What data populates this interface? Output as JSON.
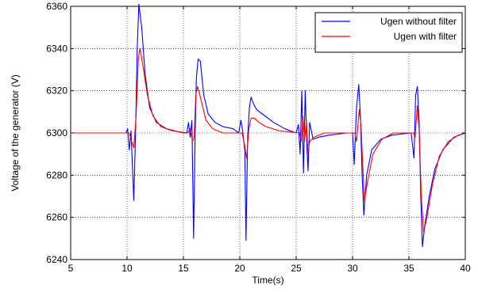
{
  "chart_data": {
    "type": "line",
    "title": "",
    "xlabel": "Time(s)",
    "ylabel": "Voltage of the generator (V)",
    "xlim": [
      5,
      40
    ],
    "ylim": [
      6240,
      6360
    ],
    "x_ticks": [
      5,
      10,
      15,
      20,
      25,
      30,
      35,
      40
    ],
    "y_ticks": [
      6240,
      6260,
      6280,
      6300,
      6320,
      6340,
      6360
    ],
    "grid": true,
    "legend_position": "top-right",
    "series": [
      {
        "name": "Ugen without filter",
        "color": "#0000ff",
        "points": [
          [
            5,
            6300
          ],
          [
            9.9,
            6300
          ],
          [
            10.05,
            6302
          ],
          [
            10.2,
            6292
          ],
          [
            10.35,
            6301
          ],
          [
            10.6,
            6268
          ],
          [
            10.75,
            6300
          ],
          [
            10.9,
            6340
          ],
          [
            11.05,
            6361
          ],
          [
            11.3,
            6350
          ],
          [
            11.6,
            6328
          ],
          [
            12,
            6312
          ],
          [
            12.6,
            6305
          ],
          [
            13.5,
            6302
          ],
          [
            15,
            6300
          ],
          [
            15.3,
            6300
          ],
          [
            15.45,
            6305
          ],
          [
            15.6,
            6298
          ],
          [
            15.75,
            6306
          ],
          [
            15.9,
            6250
          ],
          [
            16.05,
            6302
          ],
          [
            16.15,
            6326
          ],
          [
            16.3,
            6335
          ],
          [
            16.5,
            6334
          ],
          [
            16.8,
            6318
          ],
          [
            17.2,
            6309
          ],
          [
            17.8,
            6305
          ],
          [
            18.5,
            6303
          ],
          [
            19.4,
            6302
          ],
          [
            19.9,
            6300
          ],
          [
            20.1,
            6306
          ],
          [
            20.25,
            6301
          ],
          [
            20.45,
            6291
          ],
          [
            20.55,
            6249
          ],
          [
            20.7,
            6298
          ],
          [
            20.85,
            6312
          ],
          [
            21.0,
            6317
          ],
          [
            21.2,
            6314
          ],
          [
            21.5,
            6311
          ],
          [
            22,
            6309
          ],
          [
            23,
            6305
          ],
          [
            24,
            6302
          ],
          [
            25,
            6300
          ],
          [
            25.2,
            6304
          ],
          [
            25.35,
            6290
          ],
          [
            25.5,
            6320
          ],
          [
            25.65,
            6281
          ],
          [
            25.8,
            6320
          ],
          [
            25.95,
            6294
          ],
          [
            26.05,
            6282
          ],
          [
            26.2,
            6305
          ],
          [
            26.5,
            6297
          ],
          [
            27,
            6298
          ],
          [
            28,
            6299
          ],
          [
            29.5,
            6300
          ],
          [
            30,
            6300
          ],
          [
            30.15,
            6285
          ],
          [
            30.35,
            6312
          ],
          [
            30.55,
            6323
          ],
          [
            30.7,
            6308
          ],
          [
            30.85,
            6280
          ],
          [
            31.0,
            6261
          ],
          [
            31.25,
            6280
          ],
          [
            31.7,
            6292
          ],
          [
            32.5,
            6297
          ],
          [
            33.5,
            6299
          ],
          [
            35.2,
            6300
          ],
          [
            35.45,
            6288
          ],
          [
            35.6,
            6318
          ],
          [
            35.75,
            6322
          ],
          [
            35.9,
            6306
          ],
          [
            36.05,
            6270
          ],
          [
            36.2,
            6246
          ],
          [
            36.4,
            6256
          ],
          [
            36.8,
            6270
          ],
          [
            37.3,
            6283
          ],
          [
            38,
            6292
          ],
          [
            39,
            6298
          ],
          [
            40,
            6300
          ]
        ]
      },
      {
        "name": "Ugen with filter",
        "color": "#ff0000",
        "points": [
          [
            5,
            6300
          ],
          [
            10.2,
            6300
          ],
          [
            10.4,
            6296
          ],
          [
            10.6,
            6293
          ],
          [
            10.8,
            6308
          ],
          [
            11.0,
            6335
          ],
          [
            11.15,
            6340
          ],
          [
            11.4,
            6332
          ],
          [
            11.8,
            6318
          ],
          [
            12.3,
            6308
          ],
          [
            13,
            6303
          ],
          [
            14,
            6301
          ],
          [
            15.4,
            6300
          ],
          [
            15.6,
            6302
          ],
          [
            15.8,
            6296
          ],
          [
            15.95,
            6298
          ],
          [
            16.1,
            6318
          ],
          [
            16.25,
            6322
          ],
          [
            16.5,
            6317
          ],
          [
            17,
            6306
          ],
          [
            17.6,
            6302
          ],
          [
            18.5,
            6300
          ],
          [
            20.2,
            6300
          ],
          [
            20.4,
            6295
          ],
          [
            20.6,
            6288
          ],
          [
            20.8,
            6302
          ],
          [
            21.0,
            6307
          ],
          [
            21.3,
            6307
          ],
          [
            21.7,
            6305
          ],
          [
            22.3,
            6303
          ],
          [
            23.5,
            6301
          ],
          [
            25.3,
            6300
          ],
          [
            25.45,
            6296
          ],
          [
            25.6,
            6308
          ],
          [
            25.75,
            6296
          ],
          [
            25.9,
            6306
          ],
          [
            26.05,
            6290
          ],
          [
            26.2,
            6296
          ],
          [
            26.6,
            6298
          ],
          [
            27.5,
            6300
          ],
          [
            30.2,
            6300
          ],
          [
            30.35,
            6296
          ],
          [
            30.6,
            6311
          ],
          [
            30.75,
            6303
          ],
          [
            30.9,
            6285
          ],
          [
            31.05,
            6268
          ],
          [
            31.3,
            6276
          ],
          [
            31.8,
            6290
          ],
          [
            32.6,
            6297
          ],
          [
            33.6,
            6300
          ],
          [
            35.4,
            6300
          ],
          [
            35.55,
            6298
          ],
          [
            35.75,
            6313
          ],
          [
            35.9,
            6302
          ],
          [
            36.1,
            6270
          ],
          [
            36.3,
            6253
          ],
          [
            36.6,
            6260
          ],
          [
            37.1,
            6276
          ],
          [
            37.7,
            6289
          ],
          [
            38.5,
            6296
          ],
          [
            39.4,
            6299
          ],
          [
            40,
            6300
          ]
        ]
      }
    ]
  }
}
